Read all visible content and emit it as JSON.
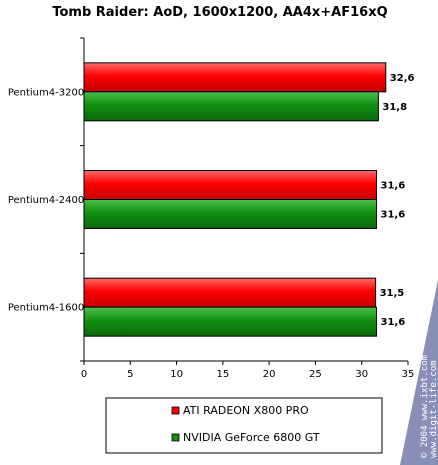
{
  "chart_data": {
    "type": "bar",
    "orientation": "horizontal",
    "title": "Tomb Raider: AoD, 1600x1200, AA4x+AF16xQ",
    "categories": [
      "Pentium4-3200",
      "Pentium4-2400",
      "Pentium4-1600"
    ],
    "series": [
      {
        "name": "ATI RADEON X800 PRO",
        "values": [
          32.6,
          31.6,
          31.5
        ],
        "labels": [
          "32,6",
          "31,6",
          "31,5"
        ],
        "color": "#ff1a1a"
      },
      {
        "name": "NVIDIA GeForce 6800 GT",
        "values": [
          31.8,
          31.6,
          31.6
        ],
        "labels": [
          "31,8",
          "31,6",
          "31,6"
        ],
        "color": "#1a9a1a"
      }
    ],
    "xlim": [
      0,
      35
    ],
    "xticks": [
      0,
      5,
      10,
      15,
      20,
      25,
      30,
      35
    ],
    "grid": false,
    "legend_position": "bottom"
  },
  "watermark": {
    "lines": [
      "© 2004 www.ixbt.com",
      "www.digit-life.com"
    ],
    "color": "#8a8fb8"
  }
}
